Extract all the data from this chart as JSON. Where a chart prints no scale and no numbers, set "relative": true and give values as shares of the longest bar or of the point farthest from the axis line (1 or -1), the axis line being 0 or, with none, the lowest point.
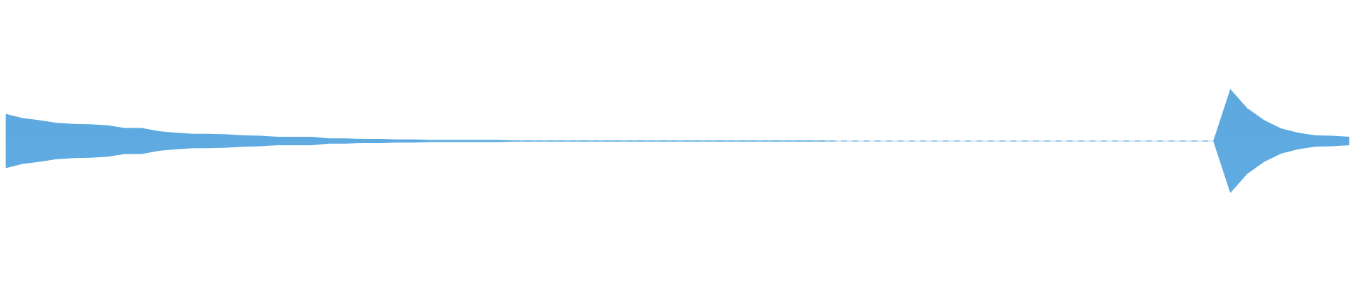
{
  "chart_data": {
    "type": "area",
    "relative": true,
    "legend": false,
    "ref_lines": [
      {
        "axis": "y",
        "value": 0,
        "color": "#5eaae0",
        "line_style": "dashed"
      }
    ],
    "categories": [
      null,
      null,
      null,
      null,
      null,
      null,
      null,
      null,
      null,
      null,
      null,
      null,
      null,
      null,
      null,
      null,
      null,
      null,
      null,
      null,
      null,
      null,
      null,
      null,
      null,
      null,
      null,
      null,
      null,
      null,
      null,
      null,
      null,
      null,
      null,
      null,
      null,
      null,
      null,
      null,
      null,
      null,
      null,
      null,
      null,
      null,
      null,
      null,
      null,
      null,
      null,
      null,
      null,
      null,
      null,
      null,
      null,
      null,
      null,
      null,
      null,
      null,
      null,
      null,
      null,
      null,
      null,
      null,
      null,
      null,
      null,
      null,
      null,
      null,
      null,
      null,
      null,
      null,
      null,
      null
    ],
    "series": [
      {
        "color": "#5eaae0",
        "values": [
          0.52,
          0.44,
          0.4,
          0.35,
          0.33,
          0.32,
          0.3,
          0.25,
          0.25,
          0.19,
          0.16,
          0.14,
          0.14,
          0.13,
          0.11,
          0.1,
          0.08,
          0.08,
          0.08,
          0.05,
          0.05,
          0.04,
          0.04,
          0.03,
          0.03,
          0.02,
          0.02,
          0.02,
          0.02,
          0.02,
          0.01,
          0.01,
          0.01,
          0.01,
          0.01,
          0.01,
          0.01,
          0.01,
          0.01,
          0.01,
          0.01,
          0.01,
          0.01,
          0.01,
          0.01,
          0.01,
          0.01,
          0.01,
          0.01,
          0.005,
          0.005,
          0.005,
          0.005,
          0.005,
          0.005,
          0.005,
          0.005,
          0.005,
          0.005,
          0.005,
          0.005,
          0.005,
          0.005,
          0.005,
          0.005,
          0.005,
          0.005,
          0.005,
          0.005,
          0.005,
          0.005,
          0.005,
          1,
          0.63,
          0.4,
          0.24,
          0.16,
          0.11,
          0.1,
          0.08
        ]
      },
      {
        "color": "#5fabe1",
        "values": [
          -0.52,
          -0.44,
          -0.4,
          -0.35,
          -0.33,
          -0.32,
          -0.3,
          -0.25,
          -0.25,
          -0.19,
          -0.16,
          -0.14,
          -0.14,
          -0.13,
          -0.11,
          -0.1,
          -0.08,
          -0.08,
          -0.08,
          -0.05,
          -0.05,
          -0.04,
          -0.04,
          -0.03,
          -0.03,
          -0.02,
          -0.02,
          -0.02,
          -0.02,
          -0.02,
          -0.01,
          -0.01,
          -0.01,
          -0.01,
          -0.01,
          -0.01,
          -0.01,
          -0.01,
          -0.01,
          -0.01,
          -0.01,
          -0.01,
          -0.01,
          -0.01,
          -0.01,
          -0.01,
          -0.01,
          -0.01,
          -0.01,
          -0.005,
          -0.005,
          -0.005,
          -0.005,
          -0.005,
          -0.005,
          -0.005,
          -0.005,
          -0.005,
          -0.005,
          -0.005,
          -0.005,
          -0.005,
          -0.005,
          -0.005,
          -0.005,
          -0.005,
          -0.005,
          -0.005,
          -0.005,
          -0.005,
          -0.005,
          -0.005,
          -1,
          -0.63,
          -0.4,
          -0.24,
          -0.16,
          -0.11,
          -0.1,
          -0.08
        ]
      }
    ]
  }
}
